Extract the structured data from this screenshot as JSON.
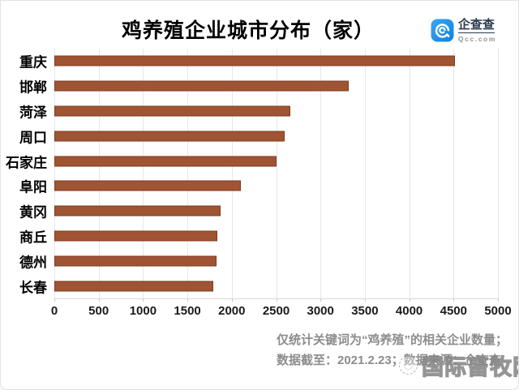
{
  "header": {
    "title": "鸡养殖企业城市分布（家）",
    "logo": {
      "icon": "qcc-spiral-c-icon",
      "name": "企查查",
      "domain": "Qcc.com",
      "icon_color_top": "#3aa7f5",
      "icon_color_bottom": "#0f7fe3",
      "name_color": "#2b3b4e",
      "domain_color": "#8a939c"
    }
  },
  "chart_data": {
    "type": "bar",
    "orientation": "horizontal",
    "title": "鸡养殖企业城市分布（家）",
    "categories": [
      "重庆",
      "邯郸",
      "菏泽",
      "周口",
      "石家庄",
      "阜阳",
      "黄冈",
      "商丘",
      "德州",
      "长春"
    ],
    "values": [
      4520,
      3320,
      2660,
      2600,
      2500,
      2100,
      1870,
      1840,
      1830,
      1790
    ],
    "xlabel": "",
    "ylabel": "",
    "xlim": [
      0,
      5000
    ],
    "x_ticks": [
      0,
      500,
      1000,
      1500,
      2000,
      2500,
      3000,
      3500,
      4000,
      4500,
      5000
    ],
    "grid": true,
    "legend": "none",
    "bar_color": "#9f5433",
    "bar_border_color": "#7e3c20",
    "gridline_color": "#e8e8e8"
  },
  "footnote": {
    "line1": "仅统计关键词为“鸡养殖”的相关企业数量；",
    "line2": "数据截至：2021.2.23；数据来源：企查查"
  },
  "watermark": {
    "icon": "animal-husbandry-network-logo-icon",
    "text": "国际畜牧网"
  }
}
